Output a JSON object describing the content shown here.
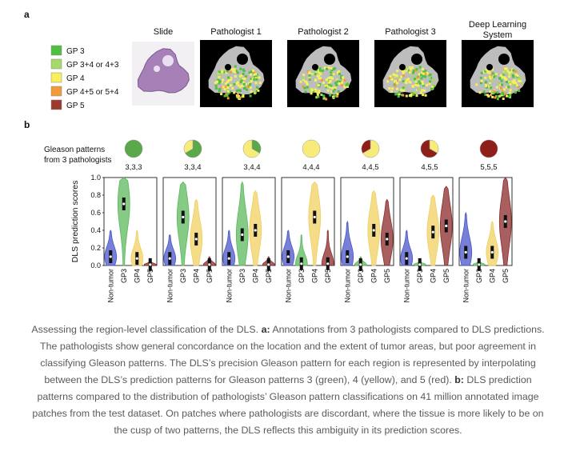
{
  "panel_a": {
    "label": "a",
    "legend": [
      {
        "label": "GP 3",
        "color": "#4fbf3f"
      },
      {
        "label": "GP 3+4 or 4+3",
        "color": "#a6d96a"
      },
      {
        "label": "GP 4",
        "color": "#f7f05a"
      },
      {
        "label": "GP 4+5 or 5+4",
        "color": "#f29a3a"
      },
      {
        "label": "GP 5",
        "color": "#9c3a2f"
      }
    ],
    "columns": [
      "Slide",
      "Pathologist 1",
      "Pathologist 2",
      "Pathologist 3",
      "Deep Learning System"
    ]
  },
  "panel_b": {
    "label": "b",
    "pie_title": [
      "Gleason patterns",
      "from 3 pathologists"
    ],
    "pie_colors": {
      "3": "#5aa84a",
      "4": "#f7ec7a",
      "5": "#8e1f1a"
    },
    "groups": [
      {
        "label": "3,3,3",
        "pie": [
          {
            "pattern": "3",
            "count": 3
          }
        ]
      },
      {
        "label": "3,3,4",
        "pie": [
          {
            "pattern": "3",
            "count": 2
          },
          {
            "pattern": "4",
            "count": 1
          }
        ]
      },
      {
        "label": "3,4,4",
        "pie": [
          {
            "pattern": "3",
            "count": 1
          },
          {
            "pattern": "4",
            "count": 2
          }
        ]
      },
      {
        "label": "4,4,4",
        "pie": [
          {
            "pattern": "4",
            "count": 3
          }
        ]
      },
      {
        "label": "4,4,5",
        "pie": [
          {
            "pattern": "4",
            "count": 2
          },
          {
            "pattern": "5",
            "count": 1
          }
        ]
      },
      {
        "label": "4,5,5",
        "pie": [
          {
            "pattern": "4",
            "count": 1
          },
          {
            "pattern": "5",
            "count": 2
          }
        ]
      },
      {
        "label": "5,5,5",
        "pie": [
          {
            "pattern": "5",
            "count": 3
          }
        ]
      }
    ],
    "chart_data": {
      "type": "violin",
      "ylabel": "DLS prediction scores",
      "categories": [
        "Non-tumor",
        "GP3",
        "GP4",
        "GP5"
      ],
      "colors": [
        "#4a55c8",
        "#5cb85c",
        "#f0d060",
        "#8b2a2a"
      ],
      "ylim": [
        0,
        1
      ],
      "yticks": [
        {
          "value": 0,
          "label": "0.0"
        },
        {
          "value": 0.2,
          "label": "0.2"
        },
        {
          "value": 0.4,
          "label": "0.4"
        },
        {
          "value": 0.6,
          "label": "0.6"
        },
        {
          "value": 0.8,
          "label": "0.8"
        },
        {
          "value": 1,
          "label": "1.0"
        }
      ],
      "panels": [
        {
          "medians": [
            0.1,
            0.7,
            0.08,
            0.01
          ],
          "tops": [
            0.4,
            1.0,
            0.4,
            0.05
          ]
        },
        {
          "medians": [
            0.08,
            0.55,
            0.3,
            0.01
          ],
          "tops": [
            0.35,
            0.95,
            0.75,
            0.1
          ]
        },
        {
          "medians": [
            0.08,
            0.35,
            0.4,
            0.01
          ],
          "tops": [
            0.4,
            0.95,
            0.85,
            0.1
          ]
        },
        {
          "medians": [
            0.1,
            0.02,
            0.55,
            0.02
          ],
          "tops": [
            0.4,
            0.35,
            0.95,
            0.4
          ]
        },
        {
          "medians": [
            0.1,
            0.01,
            0.4,
            0.3
          ],
          "tops": [
            0.5,
            0.1,
            0.85,
            0.75
          ]
        },
        {
          "medians": [
            0.08,
            0.01,
            0.38,
            0.45
          ],
          "tops": [
            0.4,
            0.05,
            0.8,
            0.9
          ]
        },
        {
          "medians": [
            0.15,
            0.01,
            0.15,
            0.5
          ],
          "tops": [
            0.6,
            0.05,
            0.5,
            1.0
          ]
        }
      ]
    }
  },
  "caption": [
    "Assessing the region-level classification of the DLS. ",
    "a:",
    " Annotations from 3 pathologists compared to DLS predictions. The pathologists show general concordance on the location and the extent of tumor areas, but poor agreement in classifying Gleason patterns. The DLS’s precision Gleason pattern for each region is represented by interpolating between the DLS’s prediction patterns for Gleason patterns 3 (green), 4 (yellow), and 5 (red). ",
    "b:",
    " DLS prediction patterns compared to the distribution of pathologists’ Gleason pattern classifications on 41 million annotated image patches from the test dataset. On patches where pathologists are discordant, where the tissue is more likely to be on the cusp of two patterns, the DLS reflects this ambiguity in its prediction scores."
  ]
}
